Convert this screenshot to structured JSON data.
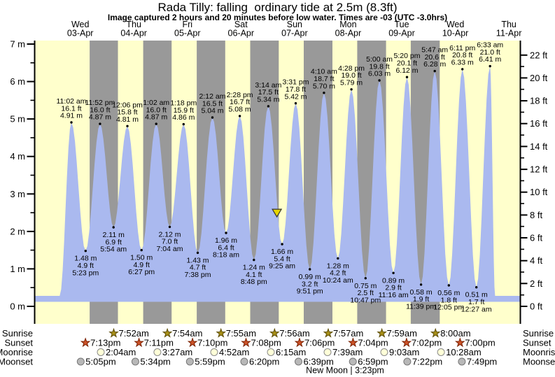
{
  "title": "Rada Tilly: falling  ordinary tide at 2.5m (8.3ft)",
  "subtitle": "Image captured 2 hours and 20 minutes before low water. Times are -03 (UTC -3.0hrs)",
  "chart_data": {
    "type": "area",
    "title": "Rada Tilly: falling ordinary tide at 2.5m (8.3ft)",
    "y_axis_left": {
      "unit": "m",
      "min": 0,
      "max": 7,
      "major_step": 1,
      "minor_step": 0.5
    },
    "y_axis_right": {
      "unit": "ft",
      "min": 0,
      "max": 22,
      "major_step": 2,
      "minor_step": 1
    },
    "days": [
      {
        "weekday": "Wed",
        "date": "03-Apr"
      },
      {
        "weekday": "Thu",
        "date": "04-Apr"
      },
      {
        "weekday": "Fri",
        "date": "05-Apr"
      },
      {
        "weekday": "Sat",
        "date": "06-Apr"
      },
      {
        "weekday": "Sun",
        "date": "07-Apr"
      },
      {
        "weekday": "Mon",
        "date": "08-Apr"
      },
      {
        "weekday": "Tue",
        "date": "09-Apr"
      },
      {
        "weekday": "Wed",
        "date": "10-Apr"
      },
      {
        "weekday": "Thu",
        "date": "11-Apr"
      }
    ],
    "tide_events": [
      {
        "kind": "high",
        "t": 11.033,
        "time": "11:02 am",
        "ft": "16.1 ft",
        "m": "4.91 m",
        "height_m": 4.91
      },
      {
        "kind": "low",
        "t": 17.383,
        "time": "5:23 pm",
        "ft": "4.9 ft",
        "m": "1.48 m",
        "height_m": 1.48
      },
      {
        "kind": "high",
        "t": 23.867,
        "time": "11:52 pm",
        "ft": "16.0 ft",
        "m": "4.87 m",
        "height_m": 4.87
      },
      {
        "kind": "low",
        "t": 29.9,
        "time": "5:54 am",
        "ft": "6.9 ft",
        "m": "2.11 m",
        "height_m": 2.11
      },
      {
        "kind": "high",
        "t": 36.1,
        "time": "12:06 pm",
        "ft": "15.8 ft",
        "m": "4.81 m",
        "height_m": 4.81
      },
      {
        "kind": "low",
        "t": 42.45,
        "time": "6:27 pm",
        "ft": "4.9 ft",
        "m": "1.50 m",
        "height_m": 1.5
      },
      {
        "kind": "high",
        "t": 49.033,
        "time": "1:02 am",
        "ft": "16.0 ft",
        "m": "4.87 m",
        "height_m": 4.87
      },
      {
        "kind": "low",
        "t": 55.067,
        "time": "7:04 am",
        "ft": "7.0 ft",
        "m": "2.12 m",
        "height_m": 2.12
      },
      {
        "kind": "high",
        "t": 61.3,
        "time": "1:18 pm",
        "ft": "15.9 ft",
        "m": "4.86 m",
        "height_m": 4.86
      },
      {
        "kind": "low",
        "t": 67.633,
        "time": "7:38 pm",
        "ft": "4.7 ft",
        "m": "1.43 m",
        "height_m": 1.43
      },
      {
        "kind": "high",
        "t": 74.2,
        "time": "2:12 am",
        "ft": "16.5 ft",
        "m": "5.04 m",
        "height_m": 5.04
      },
      {
        "kind": "low",
        "t": 80.3,
        "time": "8:18 am",
        "ft": "6.4 ft",
        "m": "1.96 m",
        "height_m": 1.96
      },
      {
        "kind": "high",
        "t": 86.467,
        "time": "2:28 pm",
        "ft": "16.7 ft",
        "m": "5.08 m",
        "height_m": 5.08
      },
      {
        "kind": "low",
        "t": 92.8,
        "time": "8:48 pm",
        "ft": "4.1 ft",
        "m": "1.24 m",
        "height_m": 1.24
      },
      {
        "kind": "high",
        "t": 99.233,
        "time": "3:14 am",
        "ft": "17.5 ft",
        "m": "5.34 m",
        "height_m": 5.34
      },
      {
        "kind": "low",
        "t": 105.417,
        "time": "9:25 am",
        "ft": "5.4 ft",
        "m": "1.66 m",
        "height_m": 1.66
      },
      {
        "kind": "high",
        "t": 111.517,
        "time": "3:31 pm",
        "ft": "17.8 ft",
        "m": "5.42 m",
        "height_m": 5.42
      },
      {
        "kind": "low",
        "t": 117.85,
        "time": "9:51 pm",
        "ft": "3.2 ft",
        "m": "0.99 m",
        "height_m": 0.99
      },
      {
        "kind": "high",
        "t": 124.167,
        "time": "4:10 am",
        "ft": "18.7 ft",
        "m": "5.70 m",
        "height_m": 5.7
      },
      {
        "kind": "low",
        "t": 130.4,
        "time": "10:24 am",
        "ft": "4.2 ft",
        "m": "1.28 m",
        "height_m": 1.28
      },
      {
        "kind": "high",
        "t": 136.467,
        "time": "4:28 pm",
        "ft": "19.0 ft",
        "m": "5.79 m",
        "height_m": 5.79
      },
      {
        "kind": "low",
        "t": 142.783,
        "time": "10:47 pm",
        "ft": "2.5 ft",
        "m": "0.75 m",
        "height_m": 0.75
      },
      {
        "kind": "high",
        "t": 149.0,
        "time": "5:00 am",
        "ft": "19.8 ft",
        "m": "6.03 m",
        "height_m": 6.03
      },
      {
        "kind": "low",
        "t": 155.267,
        "time": "11:16 am",
        "ft": "2.9 ft",
        "m": "0.89 m",
        "height_m": 0.89
      },
      {
        "kind": "high",
        "t": 161.333,
        "time": "5:20 pm",
        "ft": "20.1 ft",
        "m": "6.12 m",
        "height_m": 6.12
      },
      {
        "kind": "low",
        "t": 167.65,
        "time": "11:39 pm",
        "ft": "1.9 ft",
        "m": "0.58 m",
        "height_m": 0.58
      },
      {
        "kind": "high",
        "t": 173.783,
        "time": "5:47 am",
        "ft": "20.6 ft",
        "m": "6.28 m",
        "height_m": 6.28
      },
      {
        "kind": "low",
        "t": 180.083,
        "time": "12:05 pm",
        "ft": "1.8 ft",
        "m": "0.56 m",
        "height_m": 0.56
      },
      {
        "kind": "high",
        "t": 186.183,
        "time": "6:11 pm",
        "ft": "20.8 ft",
        "m": "6.33 m",
        "height_m": 6.33
      },
      {
        "kind": "low",
        "t": 192.45,
        "time": "12:27 am",
        "ft": "1.7 ft",
        "m": "0.51 m",
        "height_m": 0.51
      },
      {
        "kind": "high",
        "t": 198.55,
        "time": "6:33 am",
        "ft": "21.0 ft",
        "m": "6.41 m",
        "height_m": 6.41
      }
    ],
    "current_marker": {
      "t": 103.083,
      "height_m": 2.5
    },
    "colors": {
      "plot_day": "#ffffcc",
      "plot_night": "#999999",
      "tide_fill": "#aab9ef",
      "day_label": "#e80000",
      "marker_fill": "#e6d400",
      "marker_stroke": "#333333"
    }
  },
  "astro": {
    "icons": {
      "sunrise-star-icon": {
        "shape": "star",
        "fill": "#a89018",
        "stroke": "#5a4a00"
      },
      "sunset-star-icon": {
        "shape": "star",
        "fill": "#cc5228",
        "stroke": "#7a2000"
      },
      "moonrise-circle-icon": {
        "shape": "circle",
        "fill": "#ffffd8",
        "stroke": "#8a8a8a"
      },
      "moonset-circle-icon": {
        "shape": "circle",
        "fill": "#b8b8b8",
        "stroke": "#777777"
      }
    },
    "rows": [
      {
        "key": "sunrise",
        "label": "Sunrise",
        "icon": "sunrise-star-icon",
        "events": [
          {
            "t": 31.867,
            "time": "7:52am"
          },
          {
            "t": 55.9,
            "time": "7:54am"
          },
          {
            "t": 79.917,
            "time": "7:55am"
          },
          {
            "t": 103.933,
            "time": "7:56am"
          },
          {
            "t": 127.95,
            "time": "7:57am"
          },
          {
            "t": 151.983,
            "time": "7:59am"
          },
          {
            "t": 176.0,
            "time": "8:00am"
          }
        ]
      },
      {
        "key": "sunset",
        "label": "Sunset",
        "icon": "sunset-star-icon",
        "events": [
          {
            "t": 19.217,
            "time": "7:13pm"
          },
          {
            "t": 43.183,
            "time": "7:11pm"
          },
          {
            "t": 67.167,
            "time": "7:10pm"
          },
          {
            "t": 91.133,
            "time": "7:08pm"
          },
          {
            "t": 115.1,
            "time": "7:06pm"
          },
          {
            "t": 139.067,
            "time": "7:04pm"
          },
          {
            "t": 163.033,
            "time": "7:02pm"
          },
          {
            "t": 187.0,
            "time": "7:00pm"
          }
        ]
      },
      {
        "key": "moonrise",
        "label": "Moonrise",
        "icon": "moonrise-circle-icon",
        "events": [
          {
            "t": 26.067,
            "time": "2:04am"
          },
          {
            "t": 51.45,
            "time": "3:27am"
          },
          {
            "t": 76.867,
            "time": "4:52am"
          },
          {
            "t": 102.25,
            "time": "6:15am"
          },
          {
            "t": 127.65,
            "time": "7:39am"
          },
          {
            "t": 153.05,
            "time": "9:03am"
          },
          {
            "t": 178.467,
            "time": "10:28am"
          }
        ]
      },
      {
        "key": "moonset",
        "label": "Moonset",
        "icon": "moonset-circle-icon",
        "events": [
          {
            "t": 17.083,
            "time": "5:05pm"
          },
          {
            "t": 41.567,
            "time": "5:34pm"
          },
          {
            "t": 65.983,
            "time": "5:59pm"
          },
          {
            "t": 90.333,
            "time": "6:20pm"
          },
          {
            "t": 114.65,
            "time": "6:39pm"
          },
          {
            "t": 138.983,
            "time": "6:59pm"
          },
          {
            "t": 163.367,
            "time": "7:22pm"
          },
          {
            "t": 187.817,
            "time": "7:49pm"
          }
        ]
      }
    ],
    "moon_phase": "New Moon | 3:23pm"
  }
}
